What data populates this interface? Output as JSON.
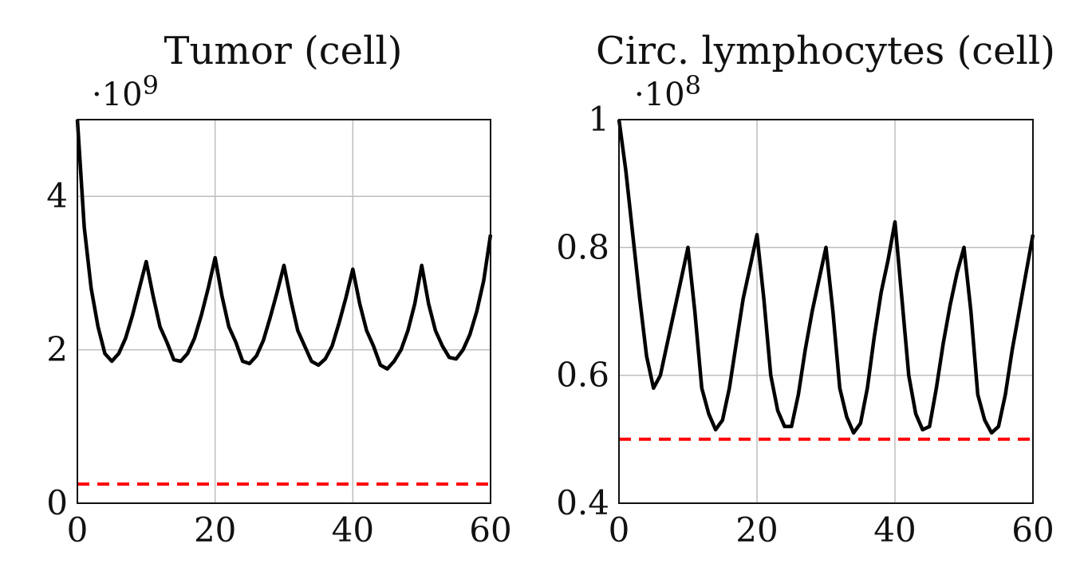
{
  "chart_data": [
    {
      "type": "line",
      "title": "Tumor (cell)",
      "multiplier": "·10",
      "multiplier_exp": "9",
      "xlim": [
        0,
        60
      ],
      "ylim": [
        0,
        5
      ],
      "xticks": [
        0,
        20,
        40,
        60
      ],
      "xtick_labels": [
        "0",
        "20",
        "40",
        "60"
      ],
      "yticks": [
        0,
        2,
        4
      ],
      "ytick_labels": [
        "0",
        "2",
        "4"
      ],
      "grid": true,
      "series": [
        {
          "name": "tumor",
          "color": "#000000",
          "style": "solid",
          "x": [
            0,
            1,
            2,
            3,
            4,
            5,
            6,
            7,
            8,
            9,
            10,
            11,
            12,
            13,
            14,
            15,
            16,
            17,
            18,
            19,
            20,
            21,
            22,
            23,
            24,
            25,
            26,
            27,
            28,
            29,
            30,
            31,
            32,
            33,
            34,
            35,
            36,
            37,
            38,
            39,
            40,
            41,
            42,
            43,
            44,
            45,
            46,
            47,
            48,
            49,
            50,
            51,
            52,
            53,
            54,
            55,
            56,
            57,
            58,
            59,
            60
          ],
          "values": [
            5.0,
            3.6,
            2.8,
            2.3,
            1.95,
            1.85,
            1.95,
            2.15,
            2.45,
            2.8,
            3.15,
            2.7,
            2.3,
            2.1,
            1.87,
            1.85,
            1.95,
            2.15,
            2.45,
            2.8,
            3.2,
            2.7,
            2.3,
            2.1,
            1.85,
            1.82,
            1.92,
            2.12,
            2.42,
            2.75,
            3.1,
            2.65,
            2.25,
            2.05,
            1.85,
            1.8,
            1.88,
            2.05,
            2.35,
            2.68,
            3.05,
            2.6,
            2.25,
            2.05,
            1.8,
            1.75,
            1.85,
            2.0,
            2.25,
            2.6,
            3.1,
            2.6,
            2.25,
            2.05,
            1.9,
            1.88,
            2.0,
            2.2,
            2.5,
            2.9,
            3.5
          ]
        },
        {
          "name": "tumor threshold",
          "color": "#ff0000",
          "style": "dashed",
          "x": [
            0,
            60
          ],
          "values": [
            0.25,
            0.25
          ]
        }
      ]
    },
    {
      "type": "line",
      "title": "Circ. lymphocytes (cell)",
      "multiplier": "·10",
      "multiplier_exp": "8",
      "xlim": [
        0,
        60
      ],
      "ylim": [
        0.4,
        1.0
      ],
      "xticks": [
        0,
        20,
        40,
        60
      ],
      "xtick_labels": [
        "0",
        "20",
        "40",
        "60"
      ],
      "yticks": [
        0.4,
        0.6,
        0.8,
        1.0
      ],
      "ytick_labels": [
        "0.4",
        "0.6",
        "0.8",
        "1"
      ],
      "grid": true,
      "series": [
        {
          "name": "circulating lymphocytes",
          "color": "#000000",
          "style": "solid",
          "x": [
            0,
            1,
            2,
            3,
            4,
            5,
            6,
            7,
            8,
            9,
            10,
            11,
            12,
            13,
            14,
            15,
            16,
            17,
            18,
            19,
            20,
            21,
            22,
            23,
            24,
            25,
            26,
            27,
            28,
            29,
            30,
            31,
            32,
            33,
            34,
            35,
            36,
            37,
            38,
            39,
            40,
            41,
            42,
            43,
            44,
            45,
            46,
            47,
            48,
            49,
            50,
            51,
            52,
            53,
            54,
            55,
            56,
            57,
            58,
            59,
            60
          ],
          "values": [
            1.0,
            0.92,
            0.82,
            0.72,
            0.63,
            0.58,
            0.6,
            0.65,
            0.7,
            0.75,
            0.8,
            0.7,
            0.58,
            0.54,
            0.515,
            0.53,
            0.58,
            0.65,
            0.72,
            0.77,
            0.82,
            0.72,
            0.6,
            0.545,
            0.52,
            0.52,
            0.57,
            0.64,
            0.7,
            0.75,
            0.8,
            0.7,
            0.58,
            0.535,
            0.51,
            0.525,
            0.58,
            0.66,
            0.73,
            0.78,
            0.84,
            0.72,
            0.6,
            0.54,
            0.515,
            0.52,
            0.58,
            0.65,
            0.71,
            0.76,
            0.8,
            0.7,
            0.57,
            0.53,
            0.51,
            0.52,
            0.57,
            0.64,
            0.7,
            0.76,
            0.82
          ]
        },
        {
          "name": "lymphocyte threshold",
          "color": "#ff0000",
          "style": "dashed",
          "x": [
            0,
            60
          ],
          "values": [
            0.5,
            0.5
          ]
        }
      ]
    }
  ]
}
